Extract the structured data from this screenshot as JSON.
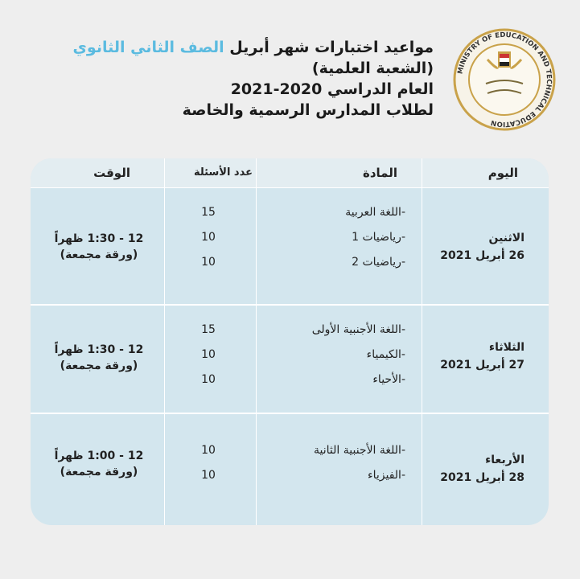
{
  "header": {
    "title_line1_main": "مواعيد اختبارات شهر أبريل",
    "title_line1_highlight": "الصف الثاني الثانوي",
    "title_line2": "(الشعبة العلمية)",
    "title_line3": "العام الدراسي 2020-2021",
    "title_line4": "لطلاب المدارس الرسمية والخاصة",
    "highlight_color": "#5bbbe0",
    "logo_text": "MINISTRY OF EDUCATION AND TECHNICAL EDUCATION"
  },
  "table": {
    "columns": [
      "اليوم",
      "المادة",
      "عدد الأسئلة",
      "الوقت"
    ],
    "rows": [
      {
        "day": "الاثنين",
        "date": "26 أبريل 2021",
        "subjects": [
          "-اللغة العربية",
          "-رياضيات 1",
          "-رياضيات 2"
        ],
        "counts": [
          "15",
          "10",
          "10"
        ],
        "time": "12 - 1:30 ظهراً",
        "note": "(ورقة مجمعة)"
      },
      {
        "day": "الثلاثاء",
        "date": "27 أبريل 2021",
        "subjects": [
          "-اللغة الأجنبية الأولى",
          "-الكيمياء",
          "-الأحياء"
        ],
        "counts": [
          "15",
          "10",
          "10"
        ],
        "time": "12 - 1:30 ظهراً",
        "note": "(ورقة مجمعة)"
      },
      {
        "day": "الأربعاء",
        "date": "28 أبريل 2021",
        "subjects": [
          "-اللغة الأجنبية الثانية",
          "-الفيزياء"
        ],
        "counts": [
          "10",
          "10"
        ],
        "time": "12 - 1:00 ظهراً",
        "note": "(ورقة مجمعة)"
      }
    ]
  }
}
